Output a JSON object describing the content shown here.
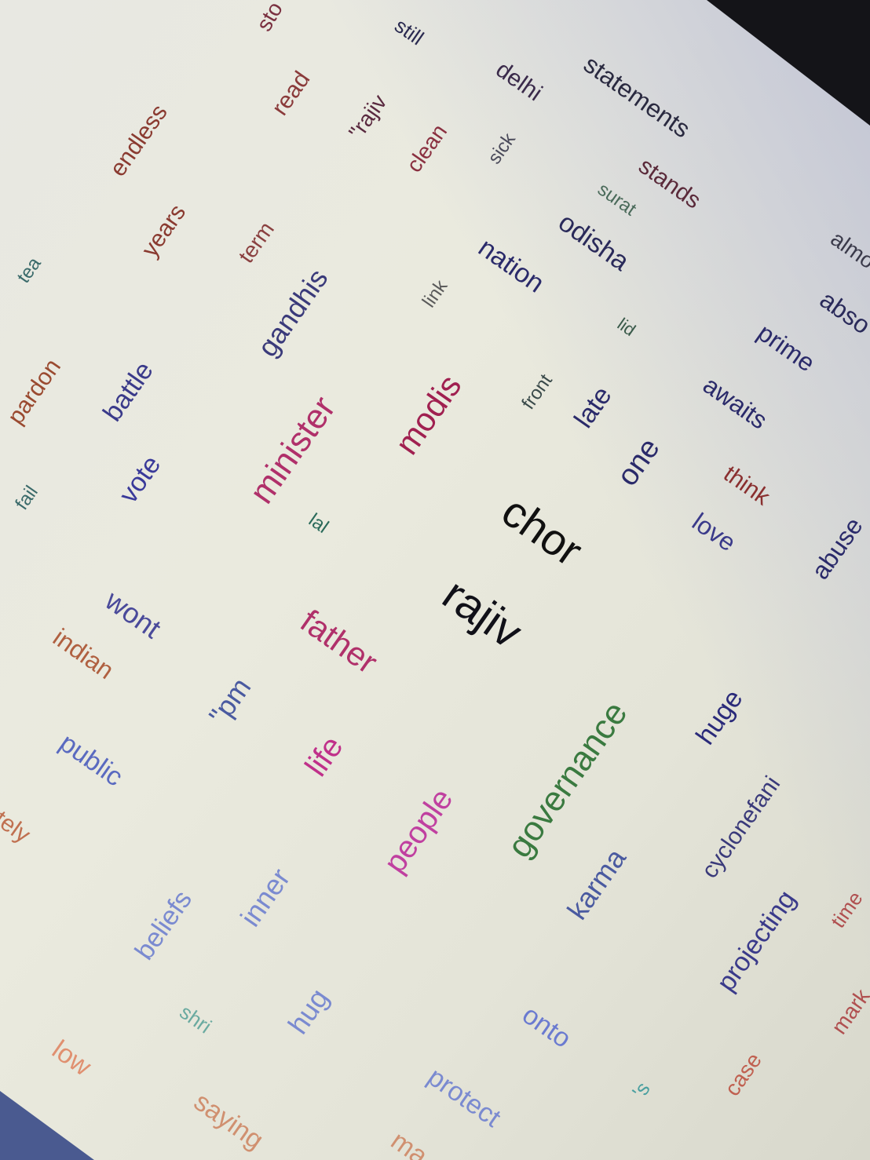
{
  "words": [
    {
      "text": "sto",
      "color": "#7a3040"
    },
    {
      "text": "still",
      "color": "#2a2a50"
    },
    {
      "text": "delhi",
      "color": "#3a2a4a"
    },
    {
      "text": "statements",
      "color": "#2a2a40"
    },
    {
      "text": "endless",
      "color": "#8a3a30"
    },
    {
      "text": "read",
      "color": "#8a3a3a"
    },
    {
      "text": "\"rajiv",
      "color": "#5a2a40"
    },
    {
      "text": "clean",
      "color": "#8a3040"
    },
    {
      "text": "sick",
      "color": "#4a4a5a"
    },
    {
      "text": "stands",
      "color": "#5a2a3a"
    },
    {
      "text": "surat",
      "color": "#4a6a5a"
    },
    {
      "text": "tea",
      "color": "#3a6a6a"
    },
    {
      "text": "years",
      "color": "#8a3a30"
    },
    {
      "text": "term",
      "color": "#8a4040"
    },
    {
      "text": "odisha",
      "color": "#2a2a5a"
    },
    {
      "text": "almo",
      "color": "#3a3a4a"
    },
    {
      "text": "gandhis",
      "color": "#3a3a7a"
    },
    {
      "text": "link",
      "color": "#5a5a5a"
    },
    {
      "text": "nation",
      "color": "#2a2a6a"
    },
    {
      "text": "abso",
      "color": "#2a2a5a"
    },
    {
      "text": "pardon",
      "color": "#9a4a30"
    },
    {
      "text": "lid",
      "color": "#3a5a4a"
    },
    {
      "text": "prime",
      "color": "#2a2a6a"
    },
    {
      "text": "battle",
      "color": "#3a3a8a"
    },
    {
      "text": "front",
      "color": "#3a4a4a"
    },
    {
      "text": "late",
      "color": "#2a2a6a"
    },
    {
      "text": "awaits",
      "color": "#2a2a6a"
    },
    {
      "text": "minister",
      "color": "#b0306a"
    },
    {
      "text": "modis",
      "color": "#a02050"
    },
    {
      "text": "fail",
      "color": "#3a6a6a"
    },
    {
      "text": "vote",
      "color": "#3a3a9a"
    },
    {
      "text": "one",
      "color": "#2a2a6a"
    },
    {
      "text": "think",
      "color": "#8a3030"
    },
    {
      "text": "lal",
      "color": "#2a6a5a"
    },
    {
      "text": "chor",
      "color": "#101010"
    },
    {
      "text": "love",
      "color": "#3a3a8a"
    },
    {
      "text": "abuse",
      "color": "#2a2a6a"
    },
    {
      "text": "rajiv",
      "color": "#101018"
    },
    {
      "text": "wont",
      "color": "#4a4a9a"
    },
    {
      "text": "father",
      "color": "#b0306a"
    },
    {
      "text": "indian",
      "color": "#b06040"
    },
    {
      "text": "\"pm",
      "color": "#4a5aa0"
    },
    {
      "text": "governance",
      "color": "#3a7a40"
    },
    {
      "text": "huge",
      "color": "#2a2a7a"
    },
    {
      "text": "public",
      "color": "#5a6ac0"
    },
    {
      "text": "life",
      "color": "#c0308a"
    },
    {
      "text": "people",
      "color": "#c040a0"
    },
    {
      "text": "cyclonefani",
      "color": "#3a3a7a"
    },
    {
      "text": "tely",
      "color": "#c07050"
    },
    {
      "text": "karma",
      "color": "#4a5aa0"
    },
    {
      "text": "inner",
      "color": "#7a8ad0"
    },
    {
      "text": "beliefs",
      "color": "#7a8ad0"
    },
    {
      "text": "projecting",
      "color": "#3a3a8a"
    },
    {
      "text": "time",
      "color": "#b05050"
    },
    {
      "text": "shri",
      "color": "#6aaaa0"
    },
    {
      "text": "hug",
      "color": "#7a8ad0"
    },
    {
      "text": "onto",
      "color": "#6a7ad0"
    },
    {
      "text": "mark",
      "color": "#b05050"
    },
    {
      "text": "low",
      "color": "#e09070"
    },
    {
      "text": "protect",
      "color": "#7a8ad0"
    },
    {
      "text": "'s",
      "color": "#4aa0a0"
    },
    {
      "text": "case",
      "color": "#c06050"
    },
    {
      "text": "saying",
      "color": "#d09070"
    },
    {
      "text": "ma",
      "color": "#d09070"
    }
  ]
}
